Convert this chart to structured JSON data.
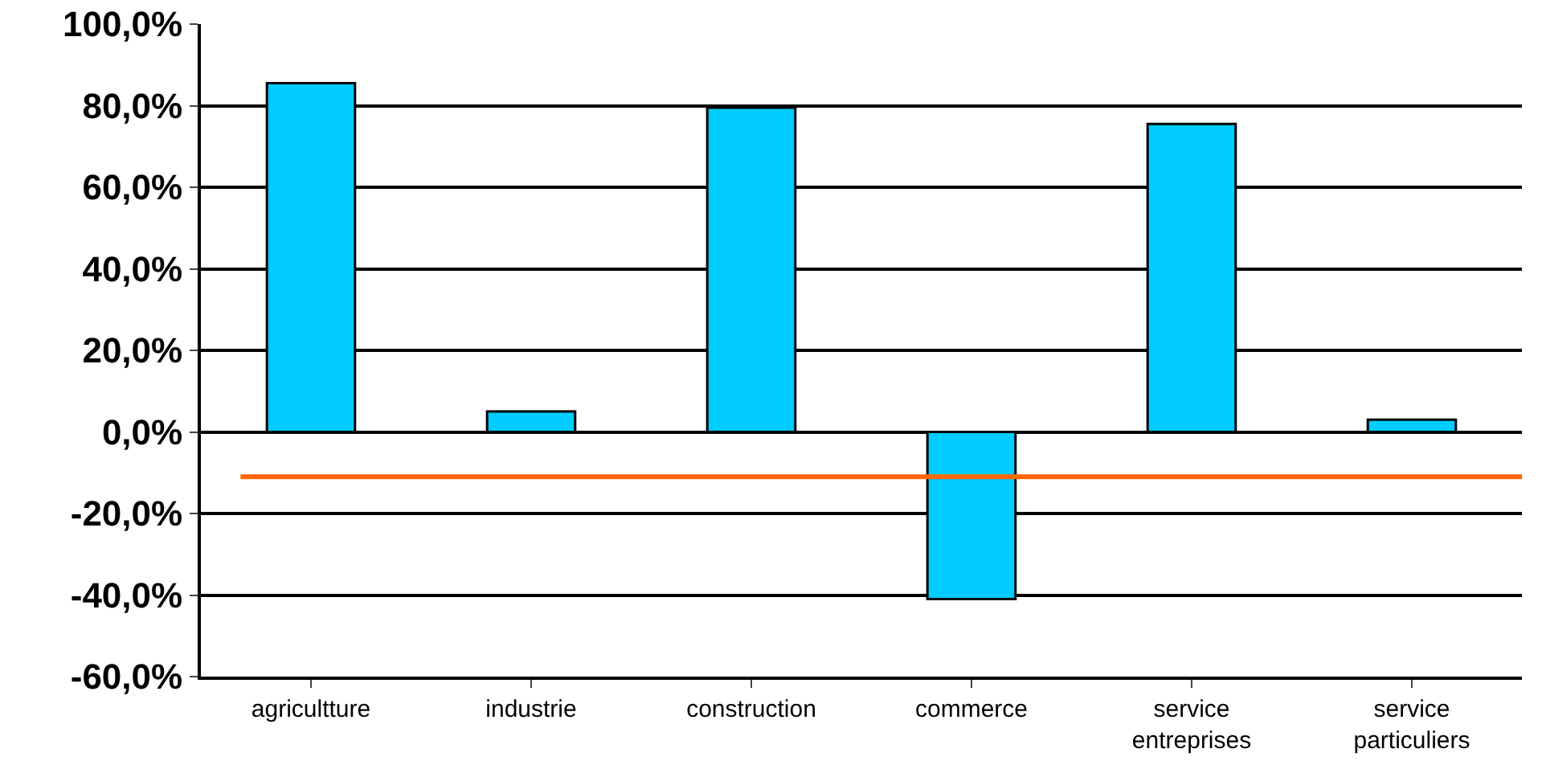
{
  "chart_data": {
    "type": "bar",
    "categories": [
      "agricultture",
      "industrie",
      "construction",
      "commerce",
      "service entreprises",
      "service particuliers"
    ],
    "values": [
      85.5,
      5,
      79.5,
      -41,
      75.5,
      3
    ],
    "color": "#00ccff",
    "ylim": [
      -60,
      100
    ],
    "yticks": [
      {
        "value": -60,
        "label": "-60,0%"
      },
      {
        "value": -40,
        "label": "-40,0%"
      },
      {
        "value": -20,
        "label": "-20,0%"
      },
      {
        "value": 0,
        "label": "0,0%"
      },
      {
        "value": 20,
        "label": "20,0%"
      },
      {
        "value": 40,
        "label": "40,0%"
      },
      {
        "value": 60,
        "label": "60,0%"
      },
      {
        "value": 80,
        "label": "80,0%"
      },
      {
        "value": 100,
        "label": "100,0%"
      }
    ],
    "grid": "y",
    "ref_lines": [
      {
        "axis": "y",
        "value": -11,
        "color": "#ff6600"
      }
    ]
  }
}
